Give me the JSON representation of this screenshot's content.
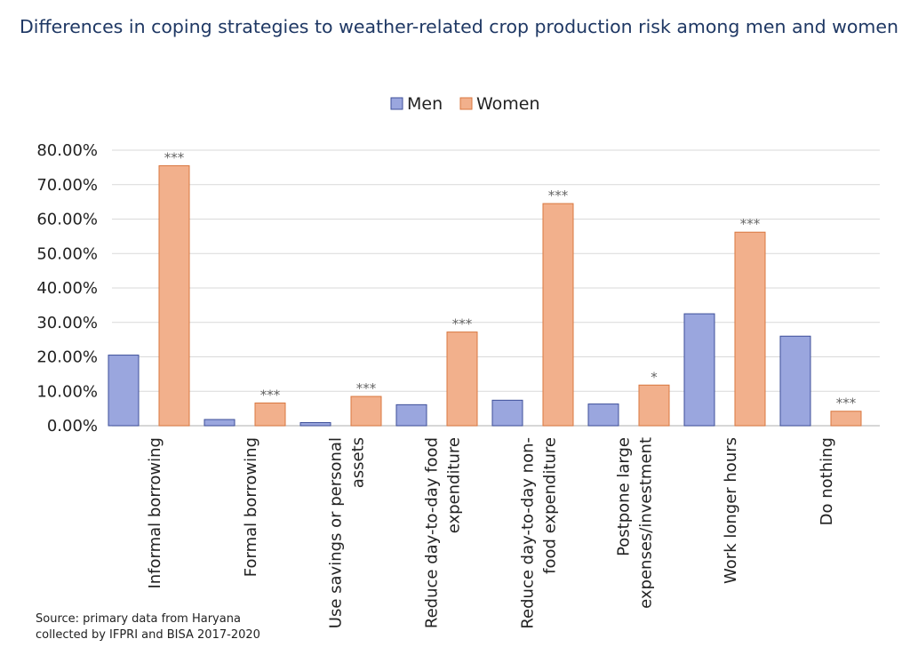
{
  "title": "Differences in coping strategies to weather-related crop production risk among men and women",
  "source_lines": [
    "Source: primary data from Haryana",
    "collected by IFPRI and BISA 2017-2020"
  ],
  "colors": {
    "men": "#9aa6de",
    "men_stroke": "#3d4f99",
    "women": "#f2b08c",
    "women_stroke": "#d9773f",
    "grid": "#d9d9d9",
    "axis": "#bfbfbf"
  },
  "chart_data": {
    "type": "bar",
    "title": "Differences in coping strategies to weather-related crop production risk among men and women",
    "xlabel": "",
    "ylabel": "",
    "ylim": [
      0,
      80
    ],
    "yticks": [
      "0.00%",
      "10.00%",
      "20.00%",
      "30.00%",
      "40.00%",
      "50.00%",
      "60.00%",
      "70.00%",
      "80.00%"
    ],
    "grid": true,
    "legend_position": "top",
    "categories": [
      [
        "Informal borrowing"
      ],
      [
        "Formal borrowing"
      ],
      [
        "Use savings or personal",
        "assets"
      ],
      [
        "Reduce day-to-day food",
        "expenditure"
      ],
      [
        "Reduce day-to-day non-",
        "food expenditure"
      ],
      [
        "Postpone large",
        "expenses/investment"
      ],
      [
        "Work longer hours"
      ],
      [
        "Do nothing"
      ]
    ],
    "series": [
      {
        "name": "Men",
        "values": [
          20.5,
          1.8,
          0.9,
          6.1,
          7.4,
          6.3,
          32.5,
          26.0
        ]
      },
      {
        "name": "Women",
        "values": [
          75.5,
          6.6,
          8.5,
          27.2,
          64.5,
          11.8,
          56.2,
          4.2
        ]
      }
    ],
    "significance": [
      "***",
      "***",
      "***",
      "***",
      "***",
      "*",
      "***",
      "***"
    ]
  }
}
